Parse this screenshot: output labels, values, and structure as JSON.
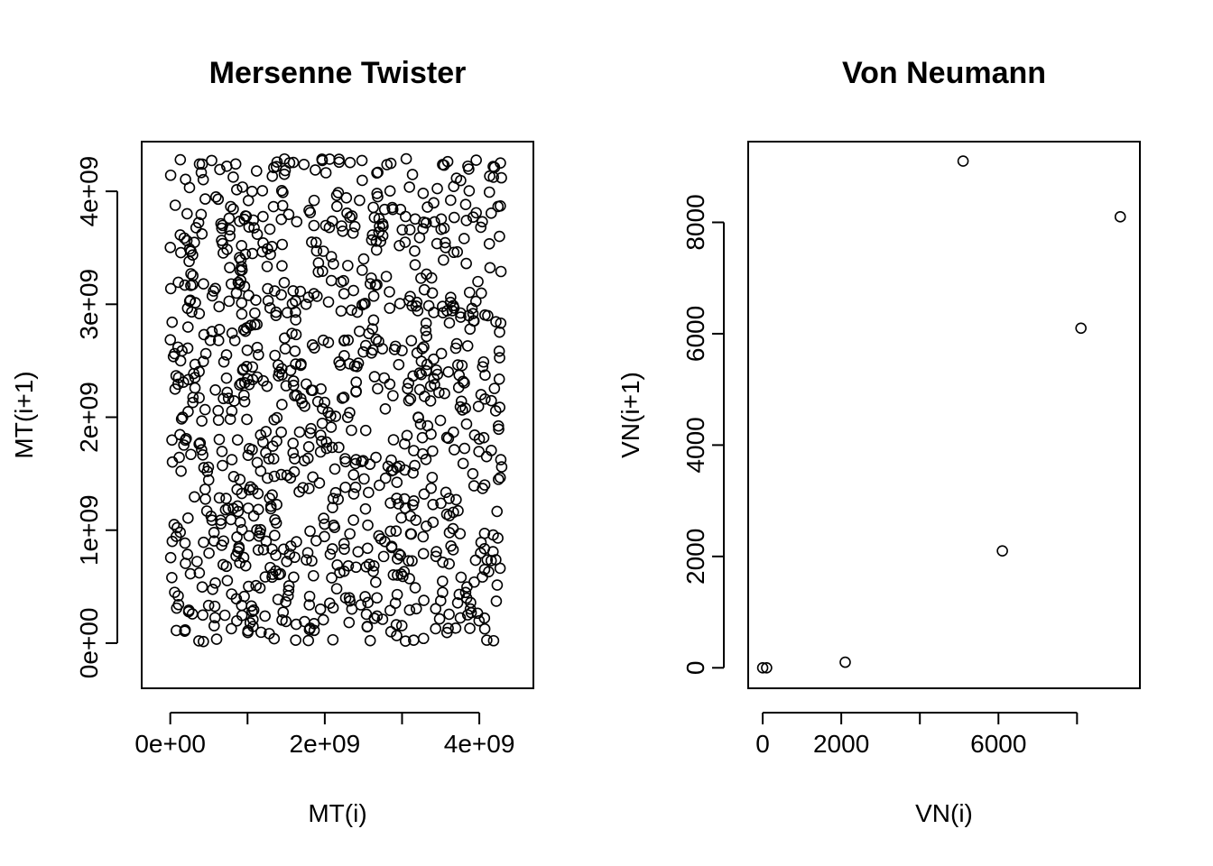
{
  "chart_data": [
    {
      "type": "scatter",
      "title": "Mersenne Twister",
      "xlabel": "MT(i)",
      "ylabel": "MT(i+1)",
      "xlim": [
        -370000000,
        4700000000
      ],
      "ylim": [
        -400000000,
        4440000000
      ],
      "x_ticks": [
        0,
        1000000000,
        2000000000,
        3000000000,
        4000000000
      ],
      "x_tick_labels": [
        "0e+00",
        "",
        "2e+09",
        "",
        "4e+09"
      ],
      "y_ticks": [
        0,
        1000000000,
        2000000000,
        3000000000,
        4000000000
      ],
      "y_tick_labels": [
        "0e+00",
        "1e+09",
        "2e+09",
        "3e+09",
        "4e+09"
      ],
      "marker": "open-circle",
      "grid": false,
      "n_points": 1000,
      "distribution": "approximately uniform over [0, 4.29e9] x [0, 4.29e9]",
      "sample_points": [
        [
          20000000.0,
          580000000.0
        ],
        [
          50000000.0,
          1050000000.0
        ],
        [
          100000000.0,
          2620000000.0
        ],
        [
          130000000.0,
          4280000000.0
        ],
        [
          250000000.0,
          3490000000.0
        ],
        [
          370000000.0,
          20000000.0
        ],
        [
          480000000.0,
          1520000000.0
        ],
        [
          620000000.0,
          3930000000.0
        ],
        [
          790000000.0,
          3180000000.0
        ],
        [
          920000000.0,
          2300000000.0
        ],
        [
          1060000000.0,
          280000000.0
        ],
        [
          1200000000.0,
          1780000000.0
        ],
        [
          1340000000.0,
          4210000000.0
        ],
        [
          1480000000.0,
          2700000000.0
        ],
        [
          1610000000.0,
          760000000.0
        ],
        [
          1780000000.0,
          800000000.0
        ],
        [
          1830000000.0,
          3550000000.0
        ],
        [
          1950000000.0,
          2250000000.0
        ],
        [
          2100000000.0,
          1200000000.0
        ],
        [
          2270000000.0,
          400000000.0
        ],
        [
          2450000000.0,
          3920000000.0
        ],
        [
          2570000000.0,
          2740000000.0
        ],
        [
          2700000000.0,
          950000000.0
        ],
        [
          2860000000.0,
          1620000000.0
        ],
        [
          3000000000.0,
          2590000000.0
        ],
        [
          3170000000.0,
          490000000.0
        ],
        [
          3210000000.0,
          2000000000.0
        ],
        [
          3420000000.0,
          3730000000.0
        ],
        [
          3550000000.0,
          2210000000.0
        ],
        [
          3700000000.0,
          1270000000.0
        ],
        [
          3850000000.0,
          250000000.0
        ],
        [
          3960000000.0,
          3810000000.0
        ],
        [
          4070000000.0,
          1400000000.0
        ],
        [
          4180000000.0,
          4220000000.0
        ],
        [
          4240000000.0,
          930000000.0
        ],
        [
          4280000000.0,
          3290000000.0
        ]
      ]
    },
    {
      "type": "scatter",
      "title": "Von Neumann",
      "xlabel": "VN(i)",
      "ylabel": "VN(i+1)",
      "xlim": [
        -369,
        9600
      ],
      "ylim": [
        -368,
        9450
      ],
      "x_ticks": [
        0,
        2000,
        4000,
        6000,
        8000
      ],
      "x_tick_labels": [
        "0",
        "2000",
        "",
        "6000",
        ""
      ],
      "y_ticks": [
        0,
        2000,
        4000,
        6000,
        8000
      ],
      "y_tick_labels": [
        "0",
        "2000",
        "4000",
        "6000",
        "8000"
      ],
      "marker": "open-circle",
      "grid": false,
      "points": [
        [
          0,
          0
        ],
        [
          100,
          0
        ],
        [
          2100,
          100
        ],
        [
          5100,
          9100
        ],
        [
          6100,
          2100
        ],
        [
          8100,
          6100
        ],
        [
          9100,
          8100
        ]
      ]
    }
  ]
}
